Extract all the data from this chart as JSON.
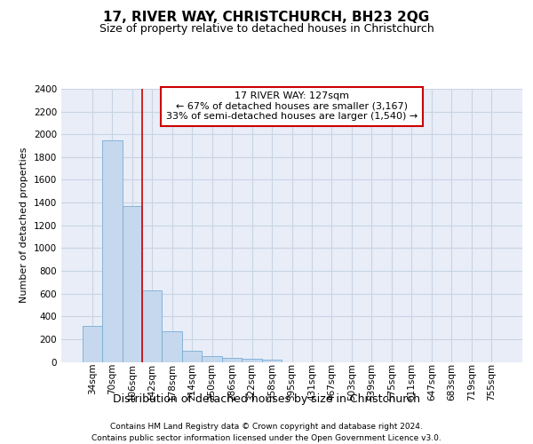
{
  "title": "17, RIVER WAY, CHRISTCHURCH, BH23 2QG",
  "subtitle": "Size of property relative to detached houses in Christchurch",
  "xlabel": "Distribution of detached houses by size in Christchurch",
  "ylabel": "Number of detached properties",
  "footnote1": "Contains HM Land Registry data © Crown copyright and database right 2024.",
  "footnote2": "Contains public sector information licensed under the Open Government Licence v3.0.",
  "bar_labels": [
    "34sqm",
    "70sqm",
    "106sqm",
    "142sqm",
    "178sqm",
    "214sqm",
    "250sqm",
    "286sqm",
    "322sqm",
    "358sqm",
    "395sqm",
    "431sqm",
    "467sqm",
    "503sqm",
    "539sqm",
    "575sqm",
    "611sqm",
    "647sqm",
    "683sqm",
    "719sqm",
    "755sqm"
  ],
  "bar_values": [
    315,
    1950,
    1370,
    630,
    270,
    100,
    47,
    32,
    27,
    20,
    0,
    0,
    0,
    0,
    0,
    0,
    0,
    0,
    0,
    0,
    0
  ],
  "bar_color": "#c5d8ee",
  "bar_edge_color": "#7aadd4",
  "red_line_x": 2.5,
  "annotation_line1": "17 RIVER WAY: 127sqm",
  "annotation_line2": "← 67% of detached houses are smaller (3,167)",
  "annotation_line3": "33% of semi-detached houses are larger (1,540) →",
  "annotation_box_edgecolor": "#cc0000",
  "vline_color": "#cc0000",
  "ylim_max": 2400,
  "yticks": [
    0,
    200,
    400,
    600,
    800,
    1000,
    1200,
    1400,
    1600,
    1800,
    2000,
    2200,
    2400
  ],
  "grid_color": "#c8d4e4",
  "bg_color": "#e8edf8",
  "title_fontsize": 11,
  "subtitle_fontsize": 9,
  "ylabel_fontsize": 8,
  "xlabel_fontsize": 9,
  "tick_fontsize": 7.5,
  "annot_fontsize": 8,
  "footnote_fontsize": 6.5
}
